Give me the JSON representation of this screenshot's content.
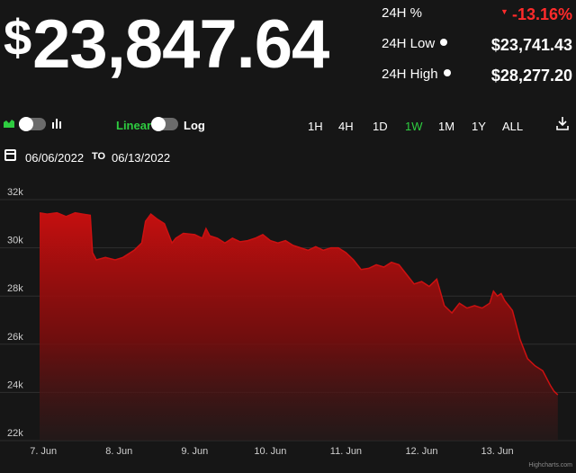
{
  "price": {
    "currency": "$",
    "value": "23,847.64"
  },
  "stats": [
    {
      "label": "24H %",
      "value": "-13.16%",
      "negative": true,
      "info": false
    },
    {
      "label": "24H Low",
      "value": "$23,741.43",
      "negative": false,
      "info": true
    },
    {
      "label": "24H High",
      "value": "$28,277.20",
      "negative": false,
      "info": true
    }
  ],
  "toolbar": {
    "scale_linear": "Linear",
    "scale_log": "Log",
    "ranges": [
      "1H",
      "4H",
      "1D",
      "1W",
      "1M",
      "1Y",
      "ALL"
    ],
    "active_range": "1W"
  },
  "date_range": {
    "from": "06/06/2022",
    "to_label": "TO",
    "to": "06/13/2022"
  },
  "colors": {
    "accent": "#2ecc40",
    "negative": "#ff2b2b",
    "series": "#cc1111",
    "background": "#161616"
  },
  "credit": "Highcharts.com",
  "chart_data": {
    "type": "area",
    "xlabel": "",
    "ylabel": "",
    "x_tick_labels": [
      "7. Jun",
      "8. Jun",
      "9. Jun",
      "10. Jun",
      "11. Jun",
      "12. Jun",
      "13. Jun"
    ],
    "x_tick_days": [
      0,
      1,
      2,
      3,
      4,
      5,
      6
    ],
    "y_tick_labels": [
      "22k",
      "24k",
      "26k",
      "28k",
      "30k",
      "32k"
    ],
    "ylim": [
      22000,
      32000
    ],
    "xlim": [
      -0.05,
      6.85
    ],
    "grid": true,
    "series": [
      {
        "x": [
          -0.05,
          0.05,
          0.18,
          0.3,
          0.42,
          0.52,
          0.62,
          0.65,
          0.7,
          0.82,
          0.95,
          1.05,
          1.2,
          1.3,
          1.35,
          1.42,
          1.5,
          1.6,
          1.7,
          1.75,
          1.85,
          2.0,
          2.1,
          2.15,
          2.2,
          2.3,
          2.4,
          2.5,
          2.6,
          2.7,
          2.8,
          2.9,
          3.0,
          3.1,
          3.2,
          3.3,
          3.4,
          3.5,
          3.6,
          3.7,
          3.8,
          3.9,
          4.0,
          4.1,
          4.2,
          4.3,
          4.4,
          4.5,
          4.6,
          4.7,
          4.8,
          4.9,
          5.0,
          5.1,
          5.2,
          5.3,
          5.4,
          5.5,
          5.6,
          5.7,
          5.8,
          5.9,
          5.95,
          6.0,
          6.05,
          6.1,
          6.15,
          6.2,
          6.3,
          6.4,
          6.5,
          6.6,
          6.7,
          6.75,
          6.8
        ],
        "y": [
          31450,
          31400,
          31450,
          31300,
          31450,
          31400,
          31350,
          29800,
          29500,
          29600,
          29500,
          29600,
          29900,
          30200,
          31100,
          31400,
          31200,
          31000,
          30200,
          30400,
          30600,
          30550,
          30400,
          30800,
          30500,
          30400,
          30200,
          30400,
          30250,
          30300,
          30400,
          30550,
          30300,
          30200,
          30300,
          30100,
          30000,
          29900,
          30050,
          29900,
          30000,
          30000,
          29800,
          29500,
          29100,
          29150,
          29300,
          29200,
          29400,
          29300,
          28900,
          28500,
          28600,
          28400,
          28700,
          27600,
          27300,
          27700,
          27500,
          27600,
          27500,
          27700,
          28200,
          28000,
          28100,
          27800,
          27600,
          27400,
          26200,
          25400,
          25100,
          24900,
          24300,
          24050,
          23900
        ]
      }
    ]
  }
}
